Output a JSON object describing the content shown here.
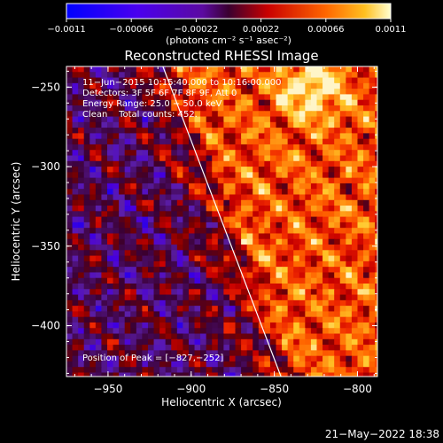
{
  "chart_data": {
    "type": "heatmap",
    "title": "Reconstructed RHESSI Image",
    "xlabel": "Heliocentric X (arcsec)",
    "ylabel": "Heliocentric Y (arcsec)",
    "xlim": [
      -975,
      -788
    ],
    "ylim": [
      -432,
      -237
    ],
    "x_ticks": [
      -950,
      -900,
      -850,
      -800
    ],
    "x_tick_labels": [
      "−950",
      "−900",
      "−850",
      "−800"
    ],
    "y_ticks": [
      -400,
      -350,
      -300,
      -250
    ],
    "y_tick_labels": [
      "−400",
      "−350",
      "−300",
      "−250"
    ],
    "colorbar": {
      "range": [
        -0.0011,
        0.0011
      ],
      "ticks": [
        -0.0011,
        -0.00066,
        -0.00022,
        0.00022,
        0.00066,
        0.0011
      ],
      "tick_labels": [
        "−0.0011",
        "−0.00066",
        "−0.00022",
        "0.00022",
        "0.00066",
        "0.0011"
      ],
      "unit_label": "(photons cm⁻² s⁻¹ asec⁻²)"
    },
    "annotations": [
      "11−Jun−2015 10:15:40.000 to 10:16:00.000",
      "Detectors: 3F 5F 6F 7F 8F 9F, Att 0",
      "Energy Range: 25.0 − 50.0 keV",
      "Clean    Total counts: 452."
    ],
    "peak_label": "Position of Peak = [−827,−252]",
    "peak": {
      "x": -827,
      "y": -252
    },
    "limb_line": [
      {
        "x": -917,
        "y": -237
      },
      {
        "x": -846,
        "y": -432
      }
    ]
  },
  "footer": {
    "timestamp": "21−May−2022 18:38"
  }
}
